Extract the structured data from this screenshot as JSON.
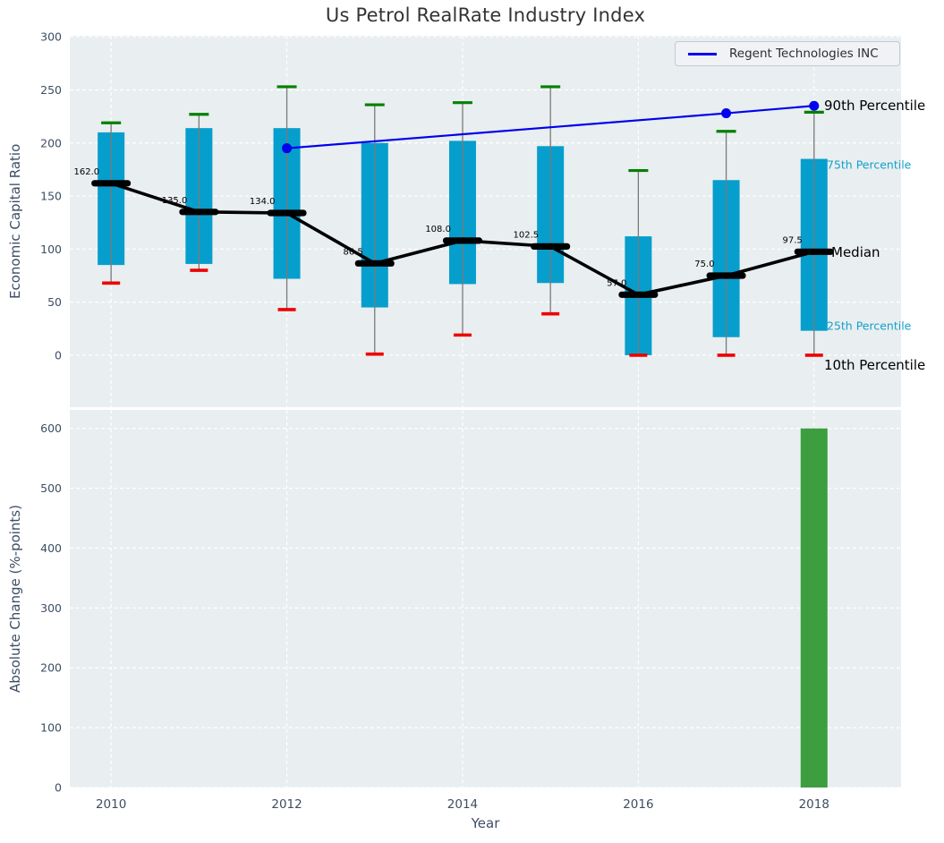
{
  "figure": {
    "title": "Us Petrol RealRate Industry Index",
    "legend_label": "Regent Technologies INC"
  },
  "annotations": {
    "p90": "90th Percentile",
    "p75": "75th Percentile",
    "median": "Median",
    "p25": "25th Percentile",
    "p10": "10th Percentile"
  },
  "colors": {
    "box_bar": "#069ecd",
    "green_bar": "#3c9e3f",
    "cap_green": "#008000",
    "cap_red": "#ee0000",
    "median_black": "#000000",
    "company_blue": "#0000ee",
    "axes_background": "#e9eef0",
    "gridline": "#ffffff",
    "tick_label": "#3d4e63",
    "whisker": "#7a7a7a"
  },
  "chart_data": [
    {
      "type": "bar",
      "subtype": "percentile-boxes-with-median-line",
      "title": "Us Petrol RealRate Industry Index",
      "ylabel": "Economic Capital Ratio",
      "x": [
        2010,
        2011,
        2012,
        2013,
        2014,
        2015,
        2016,
        2017,
        2018
      ],
      "xticks": [
        2010,
        2012,
        2014,
        2016,
        2018
      ],
      "yticks": [
        0,
        50,
        100,
        150,
        200,
        250,
        300
      ],
      "ylim": [
        -49,
        301
      ],
      "xlim": [
        2009.53,
        2018.99
      ],
      "grid": true,
      "legend_position": "upper right",
      "series": [
        {
          "name": "90th Percentile",
          "values": [
            219,
            227,
            253,
            236,
            238,
            253,
            174,
            211,
            229
          ]
        },
        {
          "name": "75th Percentile",
          "values": [
            210,
            214,
            214,
            200,
            202,
            197,
            112,
            165,
            185
          ]
        },
        {
          "name": "Median",
          "values": [
            162.0,
            135.0,
            134.0,
            86.5,
            108.0,
            102.5,
            57.0,
            75.0,
            97.5
          ]
        },
        {
          "name": "25th Percentile",
          "values": [
            85,
            86,
            72,
            45,
            67,
            68,
            0,
            17,
            23
          ]
        },
        {
          "name": "10th Percentile",
          "values": [
            68,
            80,
            43,
            1,
            19,
            39,
            0,
            0,
            0
          ]
        }
      ],
      "median_labels": [
        "162.0",
        "135.0",
        "134.0",
        "86.5",
        "108.0",
        "102.5",
        "57.0",
        "75.0",
        "97.5"
      ],
      "company_series": {
        "name": "Regent Technologies INC",
        "x": [
          2012,
          2017,
          2018
        ],
        "values": [
          195,
          228,
          235
        ]
      }
    },
    {
      "type": "bar",
      "ylabel": "Absolute Change (%-points)",
      "xlabel": "Year",
      "categories": [
        2018
      ],
      "values": [
        600
      ],
      "xticks": [
        2010,
        2012,
        2014,
        2016,
        2018
      ],
      "yticks": [
        0,
        100,
        200,
        300,
        400,
        500,
        600
      ],
      "ylim": [
        0,
        631
      ],
      "xlim": [
        2009.53,
        2018.99
      ],
      "grid": true
    }
  ]
}
